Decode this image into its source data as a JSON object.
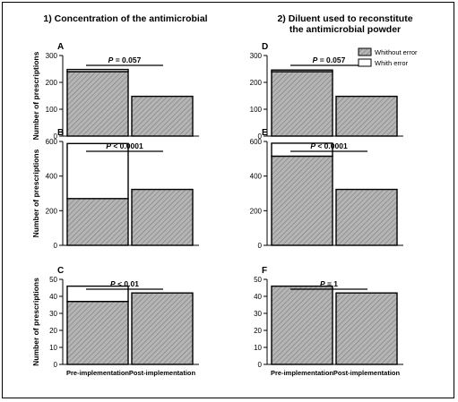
{
  "column_titles": {
    "left": "1) Concentration of the antimicrobial",
    "right_line1": "2) Diluent used to reconstitute",
    "right_line2": "the antimicrobial powder"
  },
  "legend": {
    "without_error": "Whithout error",
    "with_error": "Whith error"
  },
  "colors": {
    "bar_fill": "#b5b5b5",
    "hatch": "#7a7a7a",
    "axis": "#000000",
    "error_fill": "#ffffff"
  },
  "chart_data": [
    {
      "type": "bar",
      "panel": "A",
      "stacked": true,
      "categories": [
        "Pre-implementation",
        "Post-implementation"
      ],
      "series": [
        {
          "name": "Whithout error",
          "values": [
            240,
            148
          ]
        },
        {
          "name": "Whith error",
          "values": [
            8,
            0
          ]
        }
      ],
      "ylabel": "Number of prescriptions",
      "ylim": [
        0,
        300
      ],
      "yticks": [
        0,
        100,
        200,
        300
      ],
      "annotation": "P = 0.057",
      "show_xticklabels": false
    },
    {
      "type": "bar",
      "panel": "B",
      "stacked": true,
      "categories": [
        "Pre-implementation",
        "Post-implementation"
      ],
      "series": [
        {
          "name": "Whithout error",
          "values": [
            270,
            323
          ]
        },
        {
          "name": "Whith error",
          "values": [
            318,
            0
          ]
        }
      ],
      "ylabel": "Number of prescriptions",
      "ylim": [
        0,
        600
      ],
      "yticks": [
        0,
        200,
        400,
        600
      ],
      "annotation": "P < 0.0001",
      "show_xticklabels": false
    },
    {
      "type": "bar",
      "panel": "C",
      "stacked": true,
      "categories": [
        "Pre-implementation",
        "Post-implementation"
      ],
      "series": [
        {
          "name": "Whithout error",
          "values": [
            37,
            42
          ]
        },
        {
          "name": "Whith error",
          "values": [
            9,
            0
          ]
        }
      ],
      "ylabel": "Number of prescriptions",
      "ylim": [
        0,
        50
      ],
      "yticks": [
        0,
        10,
        20,
        30,
        40,
        50
      ],
      "annotation": "P < 0.01",
      "show_xticklabels": true
    },
    {
      "type": "bar",
      "panel": "D",
      "stacked": true,
      "categories": [
        "Pre-implementation",
        "Post-implementation"
      ],
      "series": [
        {
          "name": "Whithout error",
          "values": [
            240,
            148
          ]
        },
        {
          "name": "Whith error",
          "values": [
            6,
            0
          ]
        }
      ],
      "ylabel": "",
      "ylim": [
        0,
        300
      ],
      "yticks": [
        0,
        100,
        200,
        300
      ],
      "annotation": "P = 0.057",
      "show_xticklabels": false,
      "legend": "top-right"
    },
    {
      "type": "bar",
      "panel": "E",
      "stacked": true,
      "categories": [
        "Pre-implementation",
        "Post-implementation"
      ],
      "series": [
        {
          "name": "Whithout error",
          "values": [
            515,
            323
          ]
        },
        {
          "name": "Whith error",
          "values": [
            75,
            0
          ]
        }
      ],
      "ylabel": "",
      "ylim": [
        0,
        600
      ],
      "yticks": [
        0,
        200,
        400,
        600
      ],
      "annotation": "P < 0.0001",
      "show_xticklabels": false
    },
    {
      "type": "bar",
      "panel": "F",
      "stacked": true,
      "categories": [
        "Pre-implementation",
        "Post-implementation"
      ],
      "series": [
        {
          "name": "Whithout error",
          "values": [
            46,
            42
          ]
        },
        {
          "name": "Whith error",
          "values": [
            0,
            0
          ]
        }
      ],
      "ylabel": "",
      "ylim": [
        0,
        50
      ],
      "yticks": [
        0,
        10,
        20,
        30,
        40,
        50
      ],
      "annotation": "P = 1",
      "show_xticklabels": true
    }
  ]
}
